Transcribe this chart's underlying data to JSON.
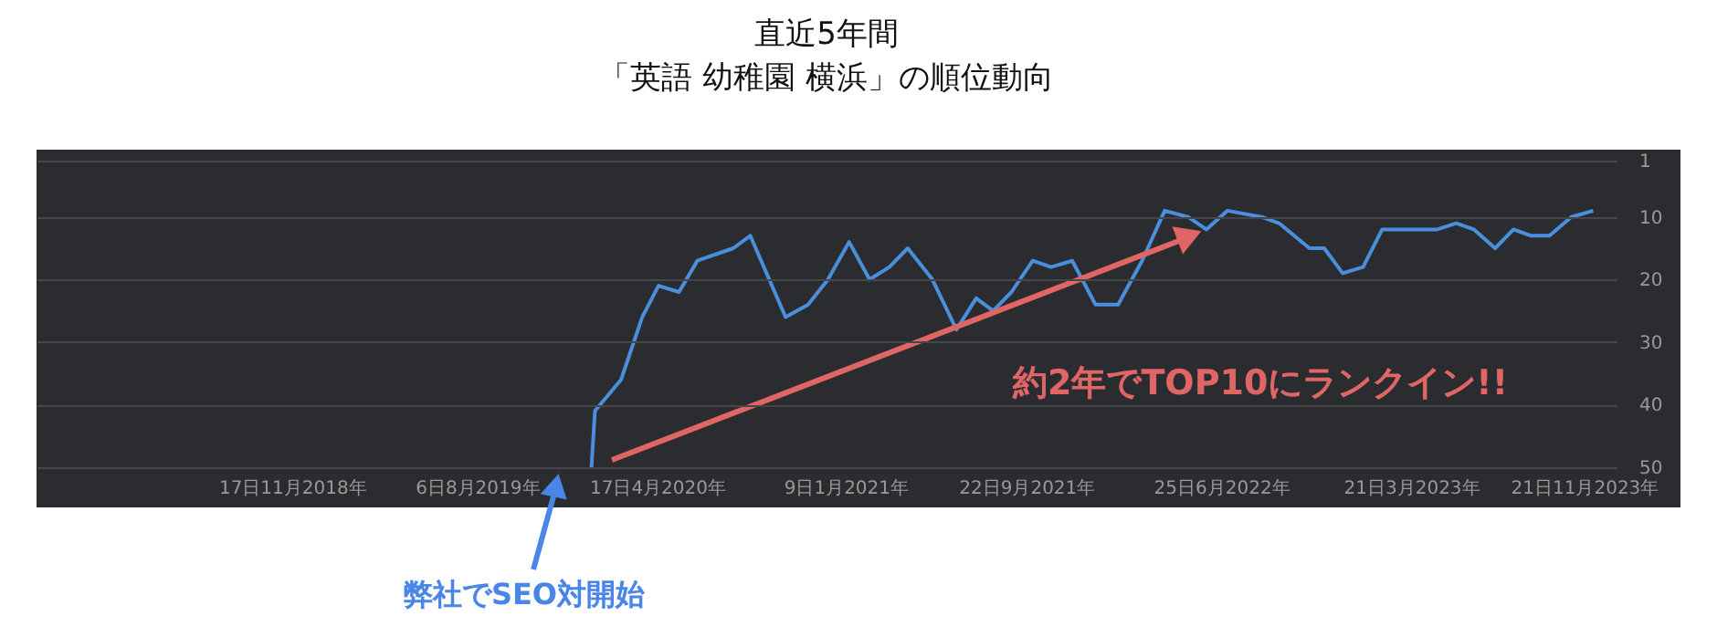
{
  "chart_data": {
    "type": "line",
    "title": [
      "直近5年間",
      "「英語 幼稚園 横浜」の順位動向"
    ],
    "x": [
      "2020-01-15",
      "2020-01-20",
      "2020-02-26",
      "2020-03-27",
      "2020-04-19",
      "2020-05-18",
      "2020-06-13",
      "2020-08-03",
      "2020-08-27",
      "2020-10-16",
      "2020-11-17",
      "2020-12-15",
      "2021-01-14",
      "2021-02-12",
      "2021-03-12",
      "2021-04-07",
      "2021-05-12",
      "2021-06-15",
      "2021-07-13",
      "2021-08-06",
      "2021-09-01",
      "2021-10-01",
      "2021-10-27",
      "2021-11-26",
      "2021-12-29",
      "2022-01-30",
      "2022-03-05",
      "2022-04-06",
      "2022-05-09",
      "2022-06-04",
      "2022-07-04",
      "2022-08-21",
      "2022-09-15",
      "2022-10-28",
      "2022-11-18",
      "2022-12-14",
      "2023-01-12",
      "2023-02-08",
      "2023-04-27",
      "2023-05-24",
      "2023-06-18",
      "2023-07-18",
      "2023-08-13",
      "2023-09-07",
      "2023-10-03",
      "2023-11-03",
      "2023-12-04"
    ],
    "series": [
      {
        "color": "#4a8fdb",
        "values": [
          50,
          41,
          36,
          26,
          21,
          22,
          17,
          15,
          13,
          26,
          24,
          20,
          14,
          20,
          18,
          15,
          20,
          28,
          23,
          25,
          22,
          17,
          18,
          17,
          24,
          24,
          17,
          9,
          10,
          12,
          9,
          10,
          11,
          15,
          15,
          19,
          18,
          12,
          12,
          11,
          12,
          15,
          12,
          13,
          13,
          10,
          9
        ]
      }
    ],
    "xlim": [
      "2017-11-20",
      "2024-01-06"
    ],
    "xticks": [
      {
        "value": "2018-11-17",
        "label": "17日11月2018年"
      },
      {
        "value": "2019-08-06",
        "label": "6日8月2019年"
      },
      {
        "value": "2020-04-17",
        "label": "17日4月2020年"
      },
      {
        "value": "2021-01-09",
        "label": "9日1月2021年"
      },
      {
        "value": "2021-09-22",
        "label": "22日9月2021年"
      },
      {
        "value": "2022-06-25",
        "label": "25日6月2022年"
      },
      {
        "value": "2023-03-21",
        "label": "21日3月2023年"
      },
      {
        "value": "2023-11-21",
        "label": "21日11月2023年"
      }
    ],
    "ylim": [
      50,
      1
    ],
    "yticks": [
      1,
      10,
      20,
      30,
      40,
      50
    ],
    "grid": "y",
    "marker": "none",
    "line_style": "solid",
    "annotations": [
      "約2年でTOP10にランクイン!!",
      "弊社でSEO対開始"
    ]
  }
}
